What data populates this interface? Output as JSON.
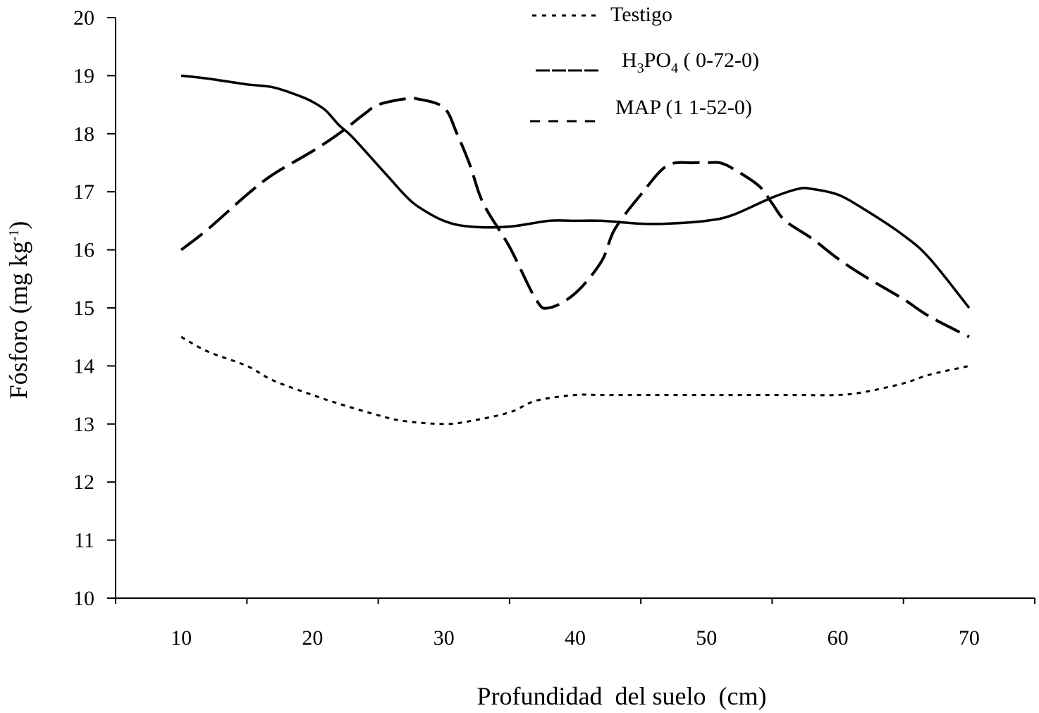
{
  "chart_data": {
    "type": "line",
    "title": "",
    "xlabel": "Profundidad  del suelo  (cm)",
    "ylabel": {
      "main": "Fósforo (mg kg",
      "superscript": "-1",
      "close": ")"
    },
    "xlim": [
      5,
      75
    ],
    "ylim": [
      10,
      20
    ],
    "xticks": [
      10,
      20,
      30,
      40,
      50,
      60,
      70
    ],
    "yticks": [
      10,
      11,
      12,
      13,
      14,
      15,
      16,
      17,
      18,
      19,
      20
    ],
    "grid": false,
    "legend_position": "top-center",
    "series": [
      {
        "name": "Testigo",
        "style": "dotted",
        "x": [
          10,
          12,
          15,
          17,
          20,
          22,
          25,
          27,
          30,
          32,
          35,
          37,
          40,
          42,
          45,
          47,
          50,
          52,
          55,
          57,
          60,
          62,
          65,
          67,
          70
        ],
        "y": [
          14.5,
          14.25,
          14.0,
          13.75,
          13.5,
          13.35,
          13.15,
          13.05,
          13.0,
          13.05,
          13.2,
          13.4,
          13.5,
          13.5,
          13.5,
          13.5,
          13.5,
          13.5,
          13.5,
          13.5,
          13.5,
          13.55,
          13.7,
          13.85,
          14.0
        ]
      },
      {
        "name": "H3PO4 ( 0-72-0)",
        "legend": {
          "a": "H",
          "sub1": "3",
          "b": "PO",
          "sub2": "4",
          "c": " ( 0-72-0)"
        },
        "style": "solid",
        "x": [
          10,
          12,
          15,
          17,
          19,
          20,
          21,
          22,
          23,
          25,
          26,
          27,
          28,
          30,
          32,
          35,
          38,
          40,
          42,
          45,
          47,
          50,
          52,
          55,
          57,
          58,
          60,
          62,
          65,
          67,
          70
        ],
        "y": [
          19.0,
          18.95,
          18.85,
          18.8,
          18.65,
          18.55,
          18.4,
          18.15,
          17.95,
          17.45,
          17.2,
          16.95,
          16.75,
          16.5,
          16.4,
          16.4,
          16.5,
          16.5,
          16.5,
          16.45,
          16.45,
          16.5,
          16.6,
          16.9,
          17.05,
          17.05,
          16.95,
          16.7,
          16.25,
          15.85,
          15.0
        ]
      },
      {
        "name": "MAP (1 1-52-0)",
        "style": "dashed",
        "x": [
          10,
          12,
          15,
          17,
          20,
          22,
          24,
          25,
          27,
          28,
          30,
          31,
          32,
          33,
          35,
          37,
          38,
          40,
          42,
          43,
          45,
          47,
          49,
          50,
          51,
          52,
          54,
          55,
          56,
          58,
          60,
          62,
          65,
          67,
          70
        ],
        "y": [
          16.0,
          16.35,
          16.95,
          17.3,
          17.7,
          18.0,
          18.35,
          18.5,
          18.6,
          18.6,
          18.45,
          18.0,
          17.45,
          16.8,
          16.05,
          15.15,
          15.0,
          15.25,
          15.8,
          16.35,
          16.95,
          17.45,
          17.5,
          17.5,
          17.5,
          17.4,
          17.1,
          16.8,
          16.5,
          16.2,
          15.85,
          15.55,
          15.15,
          14.85,
          14.5
        ]
      }
    ]
  }
}
